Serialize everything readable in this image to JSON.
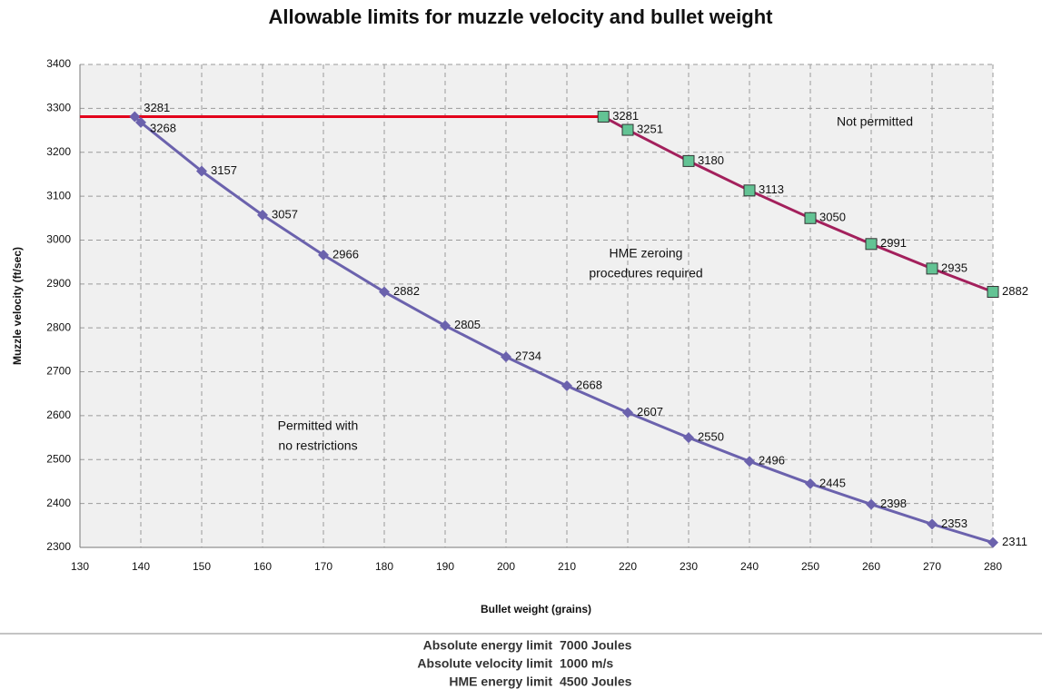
{
  "chart_data": {
    "type": "line",
    "title": "Allowable limits for muzzle velocity and bullet weight",
    "xlabel": "Bullet weight (grains)",
    "ylabel": "Muzzle velocity (ft/sec)",
    "xlim": [
      130,
      280
    ],
    "xticks": [
      130,
      140,
      150,
      160,
      170,
      180,
      190,
      200,
      210,
      220,
      230,
      240,
      250,
      260,
      270,
      280
    ],
    "ylim": [
      2300,
      3400
    ],
    "yticks": [
      2300,
      2400,
      2500,
      2600,
      2700,
      2800,
      2900,
      3000,
      3100,
      3200,
      3300,
      3400
    ],
    "grid": true,
    "series": [
      {
        "color": "#e3001b",
        "marker": "none",
        "x": [
          130,
          216
        ],
        "values": [
          3281,
          3281
        ]
      },
      {
        "color": "#6b62ad",
        "marker": "diamond",
        "labels": true,
        "x": [
          139,
          140,
          150,
          160,
          170,
          180,
          190,
          200,
          210,
          220,
          230,
          240,
          250,
          260,
          270,
          280
        ],
        "values": [
          3281,
          3268,
          3157,
          3057,
          2966,
          2882,
          2805,
          2734,
          2668,
          2607,
          2550,
          2496,
          2445,
          2398,
          2353,
          2311
        ]
      },
      {
        "color": "#a3205c",
        "marker": "square",
        "marker_color": "#63c394",
        "labels": true,
        "x": [
          216,
          220,
          230,
          240,
          250,
          260,
          270,
          280
        ],
        "values": [
          3281,
          3251,
          3180,
          3113,
          3050,
          2991,
          2935,
          2882
        ]
      }
    ],
    "annotations": [
      [
        "Not permitted"
      ],
      [
        "HME zeroing",
        "procedures required"
      ],
      [
        "Permitted with",
        "no restrictions"
      ]
    ]
  },
  "footer": {
    "rows": [
      [
        "Absolute energy limit",
        "7000 Joules"
      ],
      [
        "Absolute velocity limit",
        "1000 m/s"
      ],
      [
        "HME energy limit",
        "4500 Joules"
      ]
    ]
  }
}
